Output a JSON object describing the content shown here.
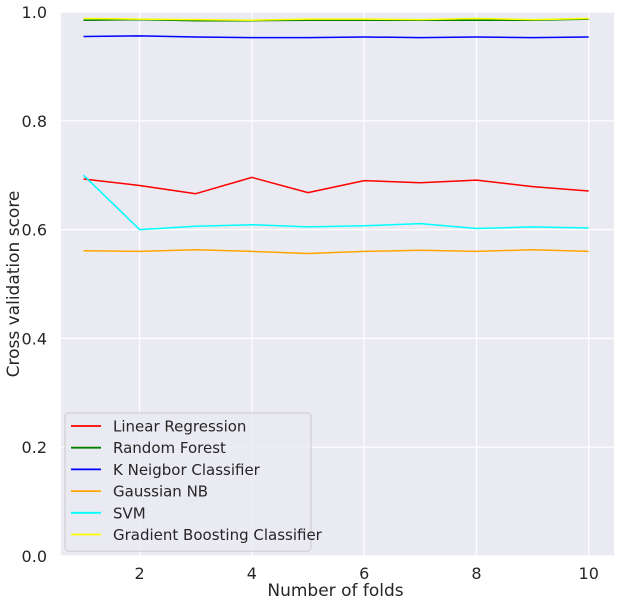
{
  "chart_data": {
    "type": "line",
    "xlabel": "Number of folds",
    "ylabel": "Cross validation score",
    "xlim": [
      0.6,
      10.45
    ],
    "ylim": [
      0.0,
      1.0
    ],
    "x_ticks": [
      2,
      4,
      6,
      8,
      10
    ],
    "y_ticks": [
      0.0,
      0.2,
      0.4,
      0.6,
      0.8,
      1.0
    ],
    "x_tick_labels": [
      "2",
      "4",
      "6",
      "8",
      "10"
    ],
    "y_tick_labels": [
      "0.0",
      "0.2",
      "0.4",
      "0.6",
      "0.8",
      "1.0"
    ],
    "grid": true,
    "legend_position": "lower-left",
    "background": "#eaeaf2",
    "x": [
      1,
      2,
      3,
      4,
      5,
      6,
      7,
      8,
      9,
      10
    ],
    "series": [
      {
        "name": "Linear Regression",
        "color": "#ff0000",
        "values": [
          0.693,
          0.681,
          0.666,
          0.696,
          0.668,
          0.69,
          0.686,
          0.691,
          0.679,
          0.671
        ]
      },
      {
        "name": "Random Forest",
        "color": "#008000",
        "values": [
          0.985,
          0.986,
          0.984,
          0.984,
          0.985,
          0.985,
          0.985,
          0.985,
          0.985,
          0.987
        ]
      },
      {
        "name": "K Neigbor Classifier",
        "color": "#0000ff",
        "values": [
          0.955,
          0.956,
          0.954,
          0.953,
          0.953,
          0.954,
          0.953,
          0.954,
          0.953,
          0.954
        ]
      },
      {
        "name": "Gaussian NB",
        "color": "#ffa500",
        "values": [
          0.561,
          0.56,
          0.563,
          0.56,
          0.556,
          0.56,
          0.562,
          0.56,
          0.563,
          0.56
        ]
      },
      {
        "name": "SVM",
        "color": "#00ffff",
        "values": [
          0.7,
          0.6,
          0.606,
          0.609,
          0.605,
          0.607,
          0.611,
          0.602,
          0.605,
          0.603
        ]
      },
      {
        "name": "Gradient Boosting Classifier",
        "color": "#ffff00",
        "values": [
          0.988,
          0.987,
          0.986,
          0.985,
          0.987,
          0.987,
          0.986,
          0.988,
          0.986,
          0.988
        ]
      }
    ]
  }
}
